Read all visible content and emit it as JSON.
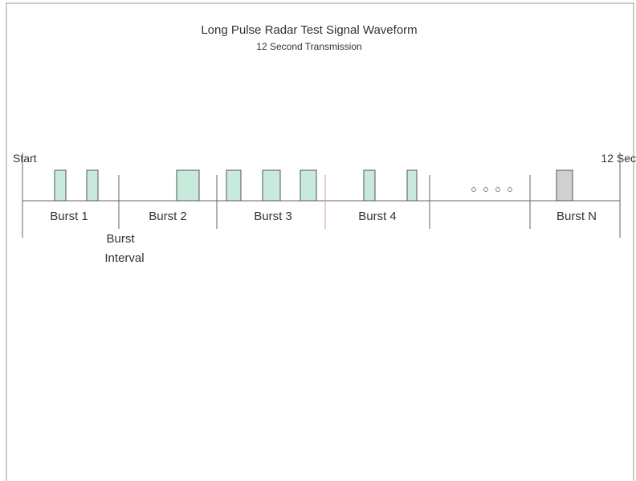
{
  "diagram": {
    "title": "Long Pulse Radar Test Signal Waveform",
    "subtitle": "12 Second Transmission",
    "start_label": "Start",
    "end_label": "12 Sec",
    "bursts": [
      "Burst 1",
      "Burst 2",
      "Burst 3",
      "Burst 4",
      "Burst N"
    ],
    "interval_label": [
      "Burst",
      "Interval"
    ]
  }
}
